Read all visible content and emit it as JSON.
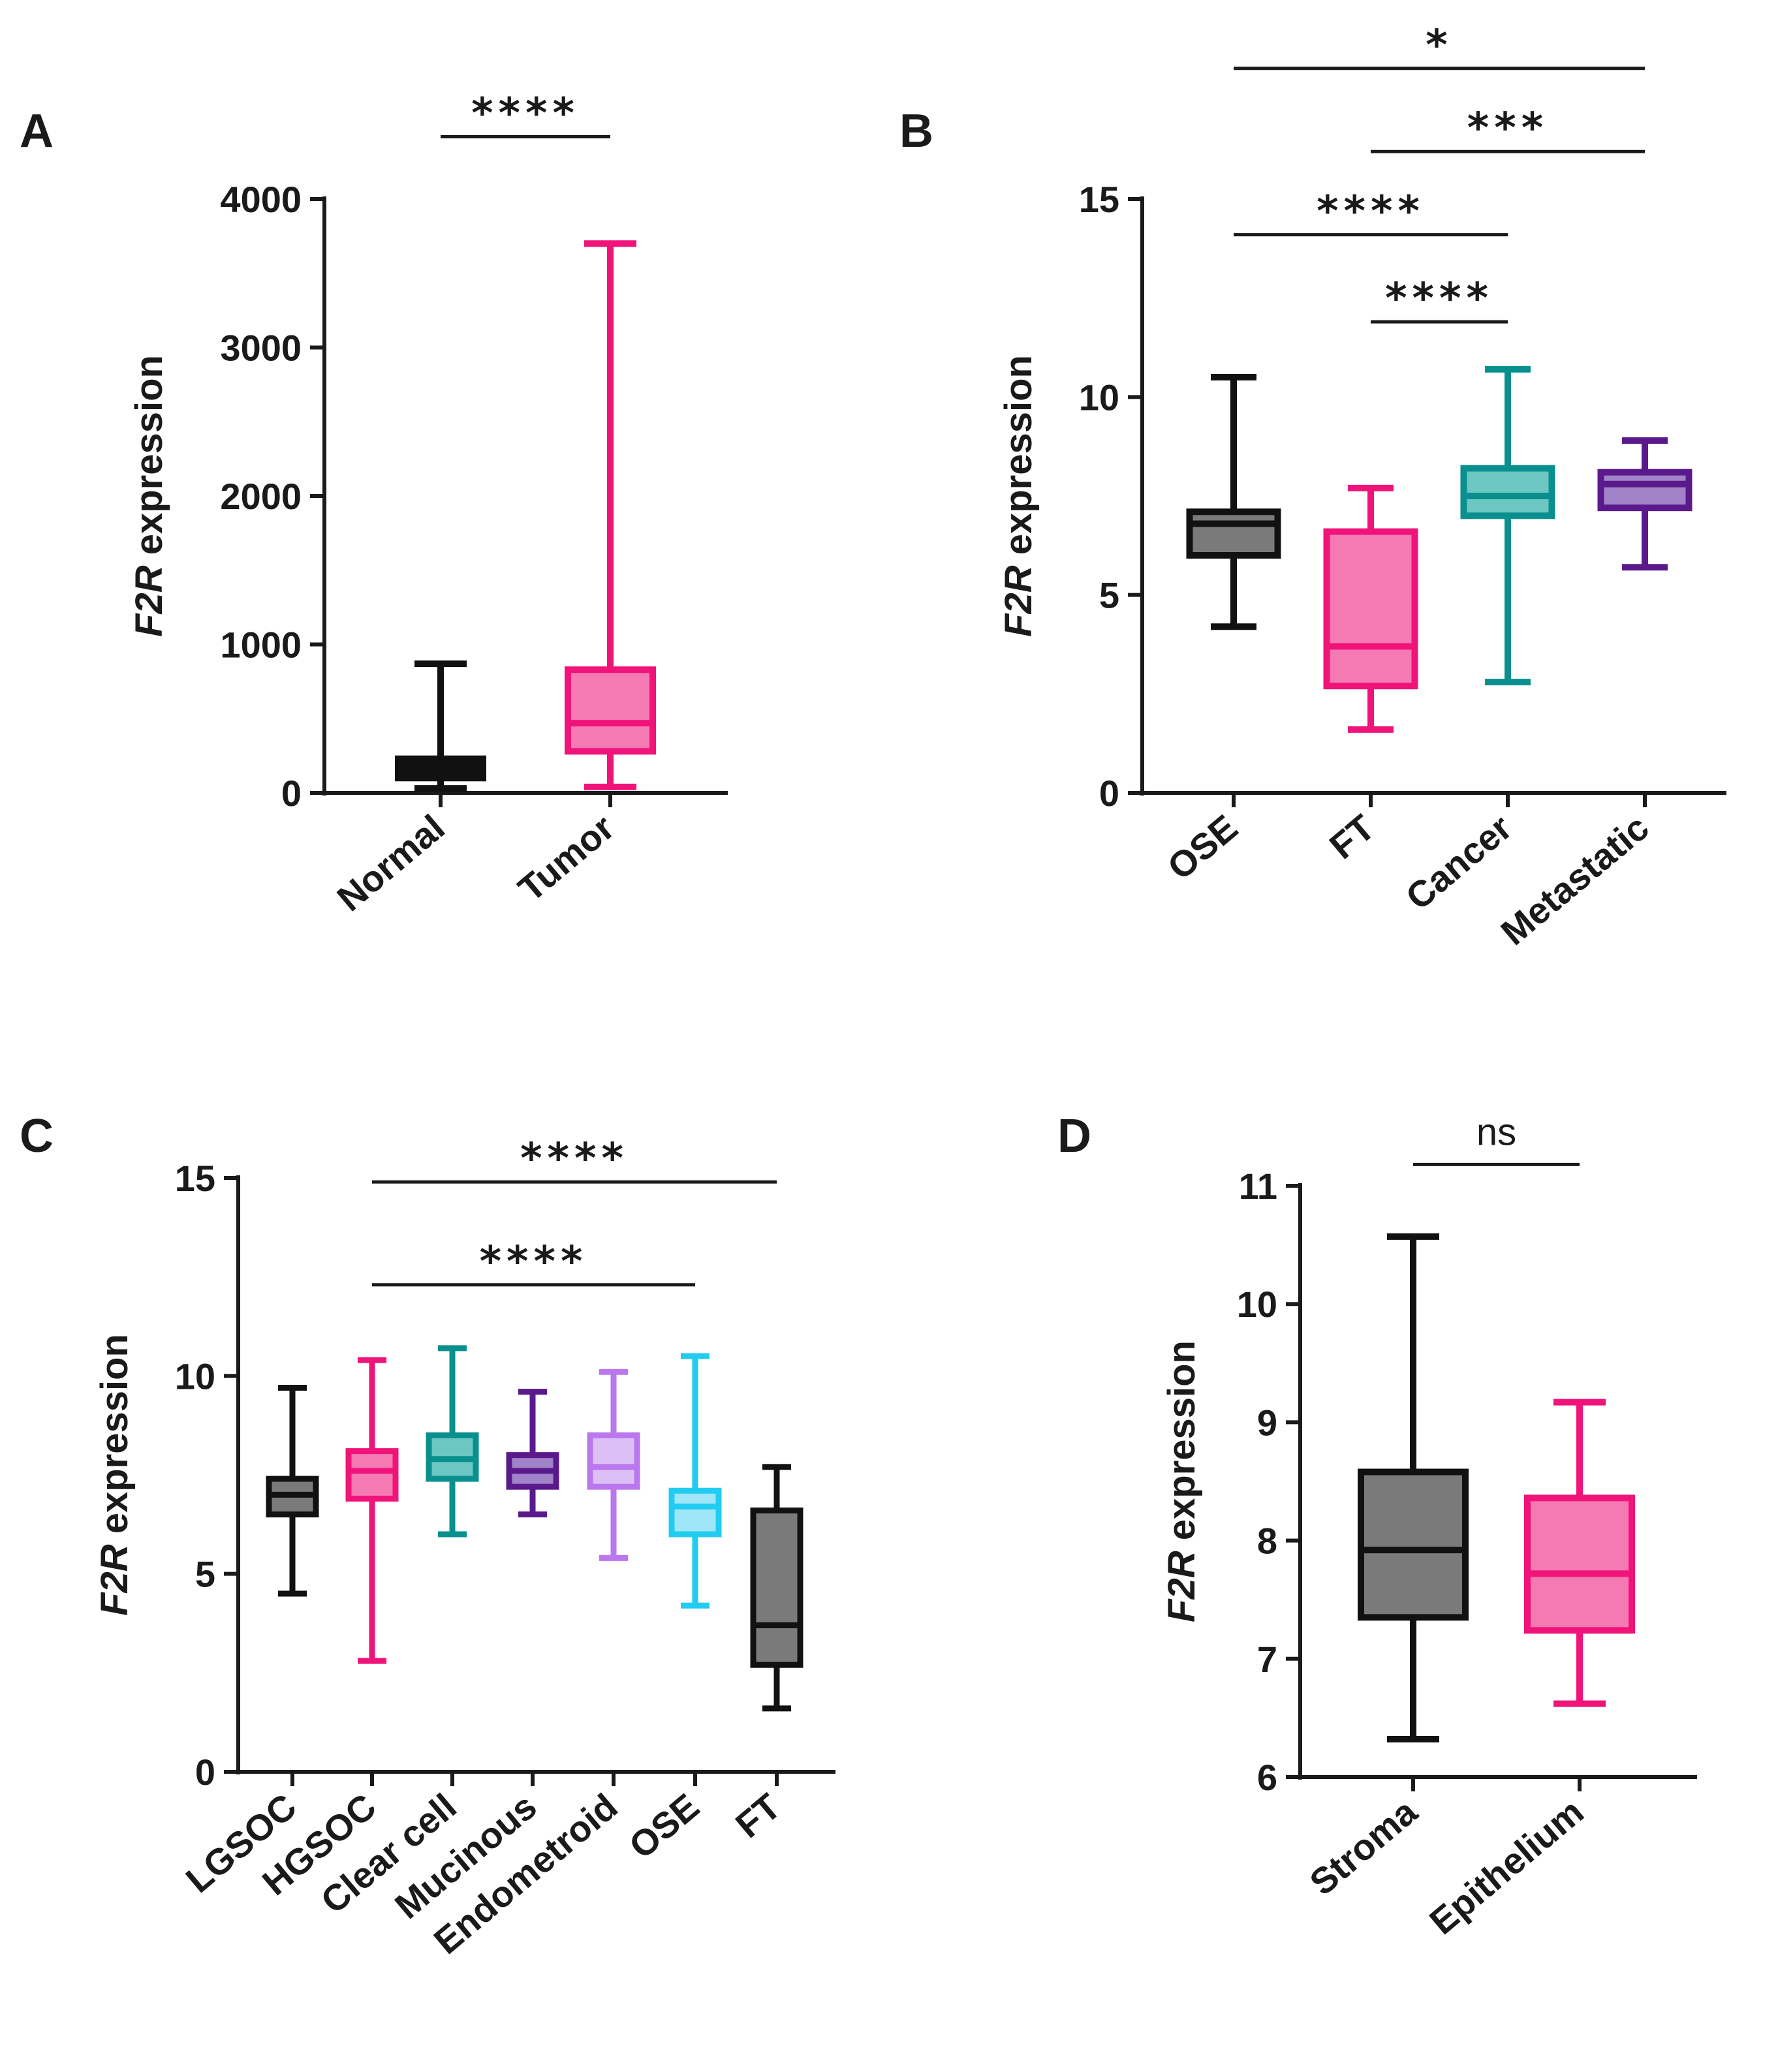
{
  "figure": {
    "panels": [
      "A",
      "B",
      "C",
      "D"
    ]
  },
  "chart_data": [
    {
      "panel": "A",
      "type": "box",
      "ylabel": {
        "italic": "F2R",
        "rest": " expression"
      },
      "ylim": [
        0,
        4000
      ],
      "yticks": [
        0,
        1000,
        2000,
        3000,
        4000
      ],
      "categories": [
        "Normal",
        "Tumor"
      ],
      "boxes": [
        {
          "name": "Normal",
          "min": 30,
          "q1": 100,
          "median": 170,
          "q3": 230,
          "max": 870,
          "stroke": "#111111",
          "fill": "#111111"
        },
        {
          "name": "Tumor",
          "min": 40,
          "q1": 280,
          "median": 470,
          "q3": 830,
          "max": 3700,
          "stroke": "#f0147a",
          "fill": "#f57ab3"
        }
      ],
      "significance": [
        {
          "from": 0,
          "to": 1,
          "y": 4420,
          "label": "****"
        }
      ]
    },
    {
      "panel": "B",
      "type": "box",
      "ylabel": {
        "italic": "F2R",
        "rest": " expression"
      },
      "ylim": [
        0,
        15
      ],
      "yticks": [
        0,
        5,
        10,
        15
      ],
      "categories": [
        "OSE",
        "FT",
        "Cancer",
        "Metastatic"
      ],
      "boxes": [
        {
          "name": "OSE",
          "min": 4.2,
          "q1": 6.0,
          "median": 6.8,
          "q3": 7.1,
          "max": 10.5,
          "stroke": "#111111",
          "fill": "#7a7a7a"
        },
        {
          "name": "FT",
          "min": 1.6,
          "q1": 2.7,
          "median": 3.7,
          "q3": 6.6,
          "max": 7.7,
          "stroke": "#f0147a",
          "fill": "#f57ab3"
        },
        {
          "name": "Cancer",
          "min": 2.8,
          "q1": 7.0,
          "median": 7.5,
          "q3": 8.2,
          "max": 10.7,
          "stroke": "#0a8f8f",
          "fill": "#6cc7c3"
        },
        {
          "name": "Metastatic",
          "min": 5.7,
          "q1": 7.2,
          "median": 7.8,
          "q3": 8.1,
          "max": 8.9,
          "stroke": "#5a1a8c",
          "fill": "#a083c8"
        }
      ],
      "significance": [
        {
          "from": 0,
          "to": 3,
          "y": 18.3,
          "label": "*"
        },
        {
          "from": 1,
          "to": 3,
          "y": 16.2,
          "label": "***"
        },
        {
          "from": 0,
          "to": 2,
          "y": 14.1,
          "label": "****"
        },
        {
          "from": 1,
          "to": 2,
          "y": 11.9,
          "label": "****"
        }
      ]
    },
    {
      "panel": "C",
      "type": "box",
      "ylabel": {
        "italic": "F2R",
        "rest": " expression"
      },
      "ylim": [
        0,
        15
      ],
      "yticks": [
        0,
        5,
        10,
        15
      ],
      "categories": [
        "LGSOC",
        "HGSOC",
        "Clear cell",
        "Mucinous",
        "Endometroid",
        "OSE",
        "FT"
      ],
      "boxes": [
        {
          "name": "LGSOC",
          "min": 4.5,
          "q1": 6.5,
          "median": 7.0,
          "q3": 7.4,
          "max": 9.7,
          "stroke": "#111111",
          "fill": "#7a7a7a"
        },
        {
          "name": "HGSOC",
          "min": 2.8,
          "q1": 6.9,
          "median": 7.6,
          "q3": 8.1,
          "max": 10.4,
          "stroke": "#f0147a",
          "fill": "#f57ab3"
        },
        {
          "name": "Clear cell",
          "min": 6.0,
          "q1": 7.4,
          "median": 7.9,
          "q3": 8.5,
          "max": 10.7,
          "stroke": "#0a8f8f",
          "fill": "#6cc7c3"
        },
        {
          "name": "Mucinous",
          "min": 6.5,
          "q1": 7.2,
          "median": 7.6,
          "q3": 8.0,
          "max": 9.6,
          "stroke": "#5a1a8c",
          "fill": "#a083c8"
        },
        {
          "name": "Endometroid",
          "min": 5.4,
          "q1": 7.2,
          "median": 7.7,
          "q3": 8.5,
          "max": 10.1,
          "stroke": "#bb77ee",
          "fill": "#dcc0f5"
        },
        {
          "name": "OSE",
          "min": 4.2,
          "q1": 6.0,
          "median": 6.7,
          "q3": 7.1,
          "max": 10.5,
          "stroke": "#22ccf0",
          "fill": "#9ee6f8"
        },
        {
          "name": "FT",
          "min": 1.6,
          "q1": 2.7,
          "median": 3.7,
          "q3": 6.6,
          "max": 7.7,
          "stroke": "#111111",
          "fill": "#7a7a7a"
        }
      ],
      "significance": [
        {
          "from": 1,
          "to": 6,
          "y": 14.9,
          "label": "****"
        },
        {
          "from": 1,
          "to": 5,
          "y": 12.3,
          "label": "****"
        }
      ]
    },
    {
      "panel": "D",
      "type": "box",
      "ylabel": {
        "italic": "F2R",
        "rest": " expression"
      },
      "ylim": [
        6,
        11
      ],
      "yticks": [
        6,
        7,
        8,
        9,
        10,
        11
      ],
      "categories": [
        "Stroma",
        "Epithelium"
      ],
      "boxes": [
        {
          "name": "Stroma",
          "min": 6.32,
          "q1": 7.35,
          "median": 7.92,
          "q3": 8.58,
          "max": 10.57,
          "stroke": "#111111",
          "fill": "#7a7a7a"
        },
        {
          "name": "Epithelium",
          "min": 6.62,
          "q1": 7.24,
          "median": 7.72,
          "q3": 8.36,
          "max": 9.17,
          "stroke": "#f0147a",
          "fill": "#f57ab3"
        }
      ],
      "significance": [
        {
          "from": 0,
          "to": 1,
          "y": 11.18,
          "label": "ns"
        }
      ]
    }
  ]
}
